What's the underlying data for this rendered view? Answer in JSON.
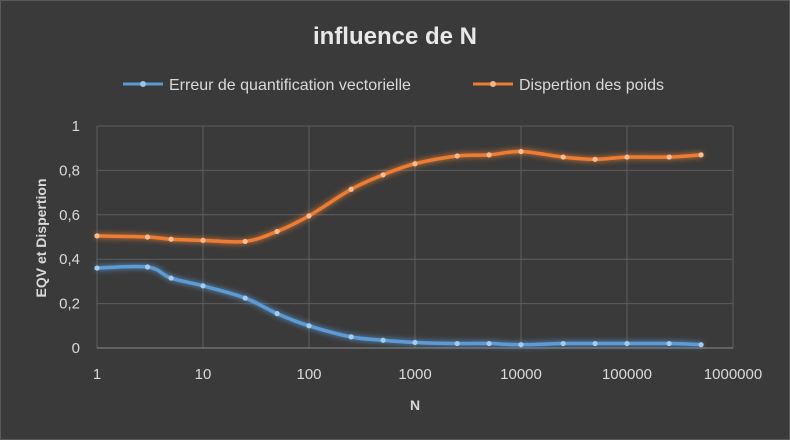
{
  "chart_data": {
    "type": "line",
    "title": "influence de N",
    "xlabel": "N",
    "ylabel": "EQV et Dispertion",
    "x_scale": "log",
    "xlim": [
      1,
      1000000
    ],
    "ylim": [
      0,
      1
    ],
    "grid": true,
    "legend_position": "top",
    "x_ticks": [
      "1",
      "10",
      "100",
      "1000",
      "10000",
      "100000",
      "1000000"
    ],
    "y_ticks": [
      "0",
      "0,2",
      "0,4",
      "0,6",
      "0,8",
      "1"
    ],
    "x": [
      1,
      3,
      5,
      10,
      25,
      50,
      100,
      250,
      500,
      1000,
      2500,
      5000,
      10000,
      25000,
      50000,
      100000,
      250000,
      500000
    ],
    "series": [
      {
        "name": "Erreur de quantification vectorielle",
        "color": "#5b9bd5",
        "values": [
          0.36,
          0.365,
          0.315,
          0.28,
          0.225,
          0.155,
          0.1,
          0.05,
          0.035,
          0.025,
          0.02,
          0.02,
          0.015,
          0.02,
          0.02,
          0.02,
          0.02,
          0.015
        ]
      },
      {
        "name": "Dispertion des poids",
        "color": "#ed7d31",
        "values": [
          0.505,
          0.5,
          0.49,
          0.485,
          0.48,
          0.525,
          0.595,
          0.715,
          0.78,
          0.83,
          0.865,
          0.87,
          0.885,
          0.86,
          0.85,
          0.86,
          0.86,
          0.87
        ]
      }
    ]
  }
}
